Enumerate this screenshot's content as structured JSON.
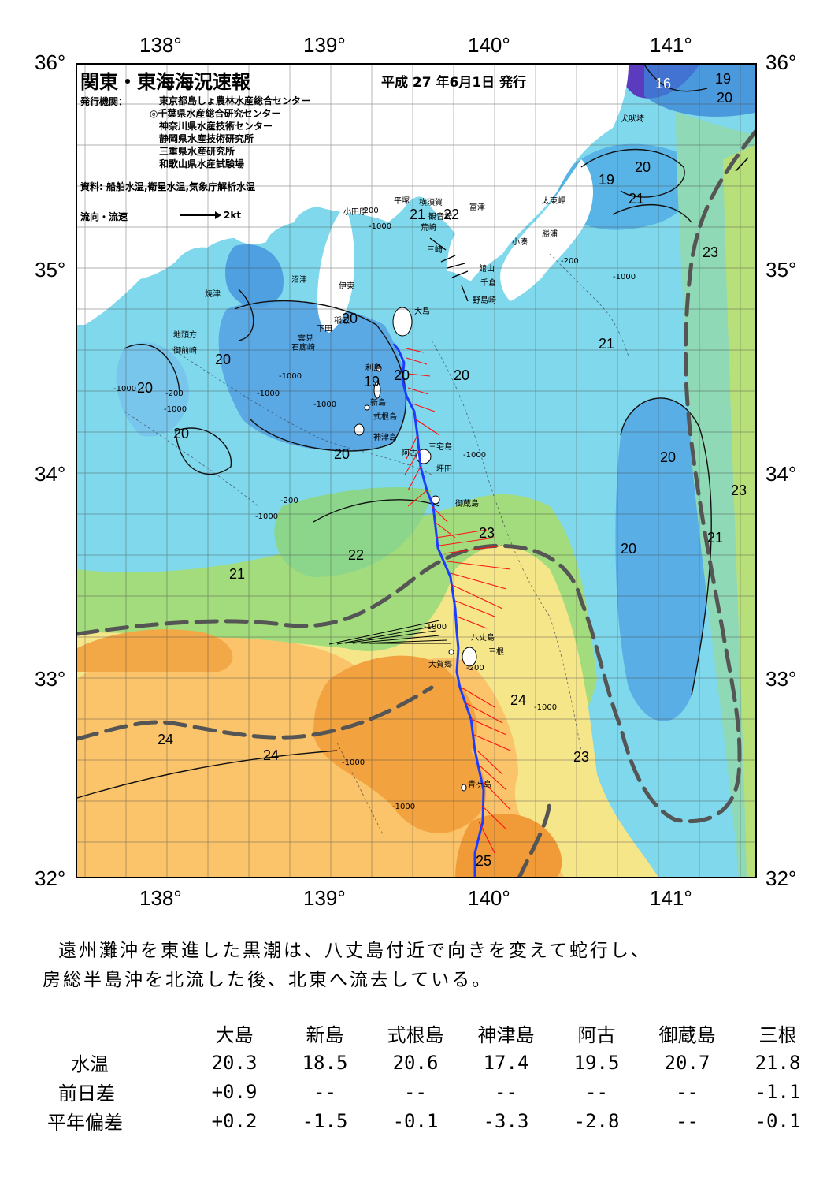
{
  "lat_labels": [
    "36°",
    "35°",
    "34°",
    "33°",
    "32°"
  ],
  "lon_labels": [
    "138°",
    "139°",
    "140°",
    "141°"
  ],
  "header": {
    "title": "関東・東海海況速報",
    "date": "平成 27 年6月1日 発行",
    "issuer_label": "発行機関：",
    "issuers": [
      "東京都島しょ農林水産総合センター",
      "◎千葉県水産総合研究センター",
      "神奈川県水産技術センター",
      "静岡県水産技術研究所",
      "三重県水産研究所",
      "和歌山県水産試験場"
    ],
    "source": "資料: 船舶水温,衛星水温,気象庁解析水温",
    "legend_label": "流向・流速",
    "legend_value": "2kt"
  },
  "isotherm_labels": [
    "16",
    "19",
    "20",
    "19",
    "20",
    "21",
    "23",
    "21",
    "22",
    "20",
    "20",
    "21",
    "20",
    "19",
    "20",
    "20",
    "20",
    "20",
    "20",
    "20",
    "23",
    "21",
    "20",
    "22",
    "23",
    "21",
    "24",
    "24",
    "24",
    "23",
    "25"
  ],
  "place_names": [
    "犬吠埼",
    "太東岬",
    "勝浦",
    "小湊",
    "富津",
    "横須賀",
    "観音埼",
    "平塚",
    "荒崎",
    "三崎",
    "館山",
    "千倉",
    "野島崎",
    "小田原",
    "沼津",
    "伊東",
    "稲取",
    "下田",
    "雲見",
    "石廊崎",
    "焼津",
    "地頭方",
    "御前崎",
    "大島",
    "利島",
    "新島",
    "式根島",
    "神津島",
    "三宅島",
    "阿古",
    "坪田",
    "御蔵島",
    "八丈島",
    "三根",
    "大賀郷",
    "青ヶ島"
  ],
  "depth_labels": [
    "-200",
    "-1000",
    "-200",
    "-1000",
    "-1000",
    "-200",
    "-1000",
    "-1000",
    "-1000",
    "-1000",
    "-1000",
    "-200",
    "-1000",
    "-1000",
    "-200",
    "-1000",
    "-1000",
    "-1000"
  ],
  "summary": {
    "line1": "遠州灘沖を東進した黒潮は、八丈島付近で向きを変えて蛇行し、",
    "line2": "房総半島沖を北流した後、北東へ流去している。"
  },
  "stats": {
    "stations": [
      "大島",
      "新島",
      "式根島",
      "神津島",
      "阿古",
      "御蔵島",
      "三根"
    ],
    "rows": [
      {
        "label": "水温",
        "values": [
          "20.3",
          "18.5",
          "20.6",
          "17.4",
          "19.5",
          "20.7",
          "21.8"
        ]
      },
      {
        "label": "前日差",
        "values": [
          "+0.9",
          "--",
          "--",
          "--",
          "--",
          "--",
          "-1.1"
        ]
      },
      {
        "label": "平年偏差",
        "values": [
          "+0.2",
          "-1.5",
          "-0.1",
          "-3.3",
          "-2.8",
          "--",
          "-0.1"
        ]
      }
    ]
  },
  "colors": {
    "sea_cold": "#3f8fdd",
    "sea_cool": "#7fd0ee",
    "sea_mid": "#7fe0c8",
    "sea_warm_green": "#a8e07a",
    "sea_yellow": "#f8e88a",
    "sea_orange_light": "#fbc870",
    "sea_orange": "#f3a040",
    "land": "#ffffff",
    "kuroshio_axis": "#505050",
    "ship_track": "#1e3cff",
    "current_vectors": "#ff1010"
  }
}
